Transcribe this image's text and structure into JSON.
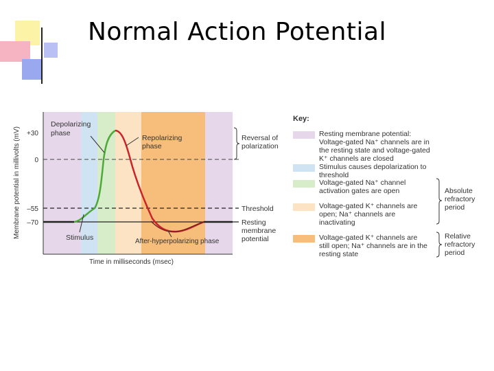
{
  "slide": {
    "title": "Normal Action Potential"
  },
  "diagram": {
    "y_axis_label": "Membrane potential in millivolts (mV)",
    "x_axis_label": "Time in milliseconds (msec)",
    "y_ticks": [
      "+30",
      "0",
      "–55",
      "–70"
    ],
    "labels": {
      "depolarizing": [
        "Depolarizing",
        "phase"
      ],
      "repolarizing": [
        "Repolarizing",
        "phase"
      ],
      "stimulus": "Stimulus",
      "after_hyper": "After-hyperpolarizing phase",
      "reversal": [
        "Reversal of",
        "polarization"
      ],
      "threshold": "Threshold",
      "resting": [
        "Resting",
        "membrane",
        "potential"
      ]
    },
    "colors": {
      "pink": "#e6d8ea",
      "blue": "#cfe3f2",
      "green": "#d7ecc9",
      "peach": "#fbe3c4",
      "orange": "#f7bd7a",
      "curve_rise": "#4ea83a",
      "curve_fall": "#c9242a"
    }
  },
  "key": {
    "title": "Key:",
    "items": [
      {
        "text": "Resting membrane potential: Voltage-gated Na⁺ channels are in the resting state and voltage-gated K⁺ channels are closed",
        "color": "#e6d8ea"
      },
      {
        "text": "Stimulus causes depolarization to threshold",
        "color": "#cfe3f2"
      },
      {
        "text": "Voltage-gated Na⁺ channel activation gates are open",
        "color": "#d7ecc9"
      },
      {
        "text": "Voltage-gated K⁺ channels are open; Na⁺ channels are inactivating",
        "color": "#fbe3c4"
      },
      {
        "text": "Voltage-gated K⁺ channels are still open; Na⁺ channels are in the resting state",
        "color": "#f7bd7a"
      }
    ],
    "absolute_refractory": [
      "Absolute",
      "refractory",
      "period"
    ],
    "relative_refractory": [
      "Relative",
      "refractory",
      "period"
    ]
  }
}
